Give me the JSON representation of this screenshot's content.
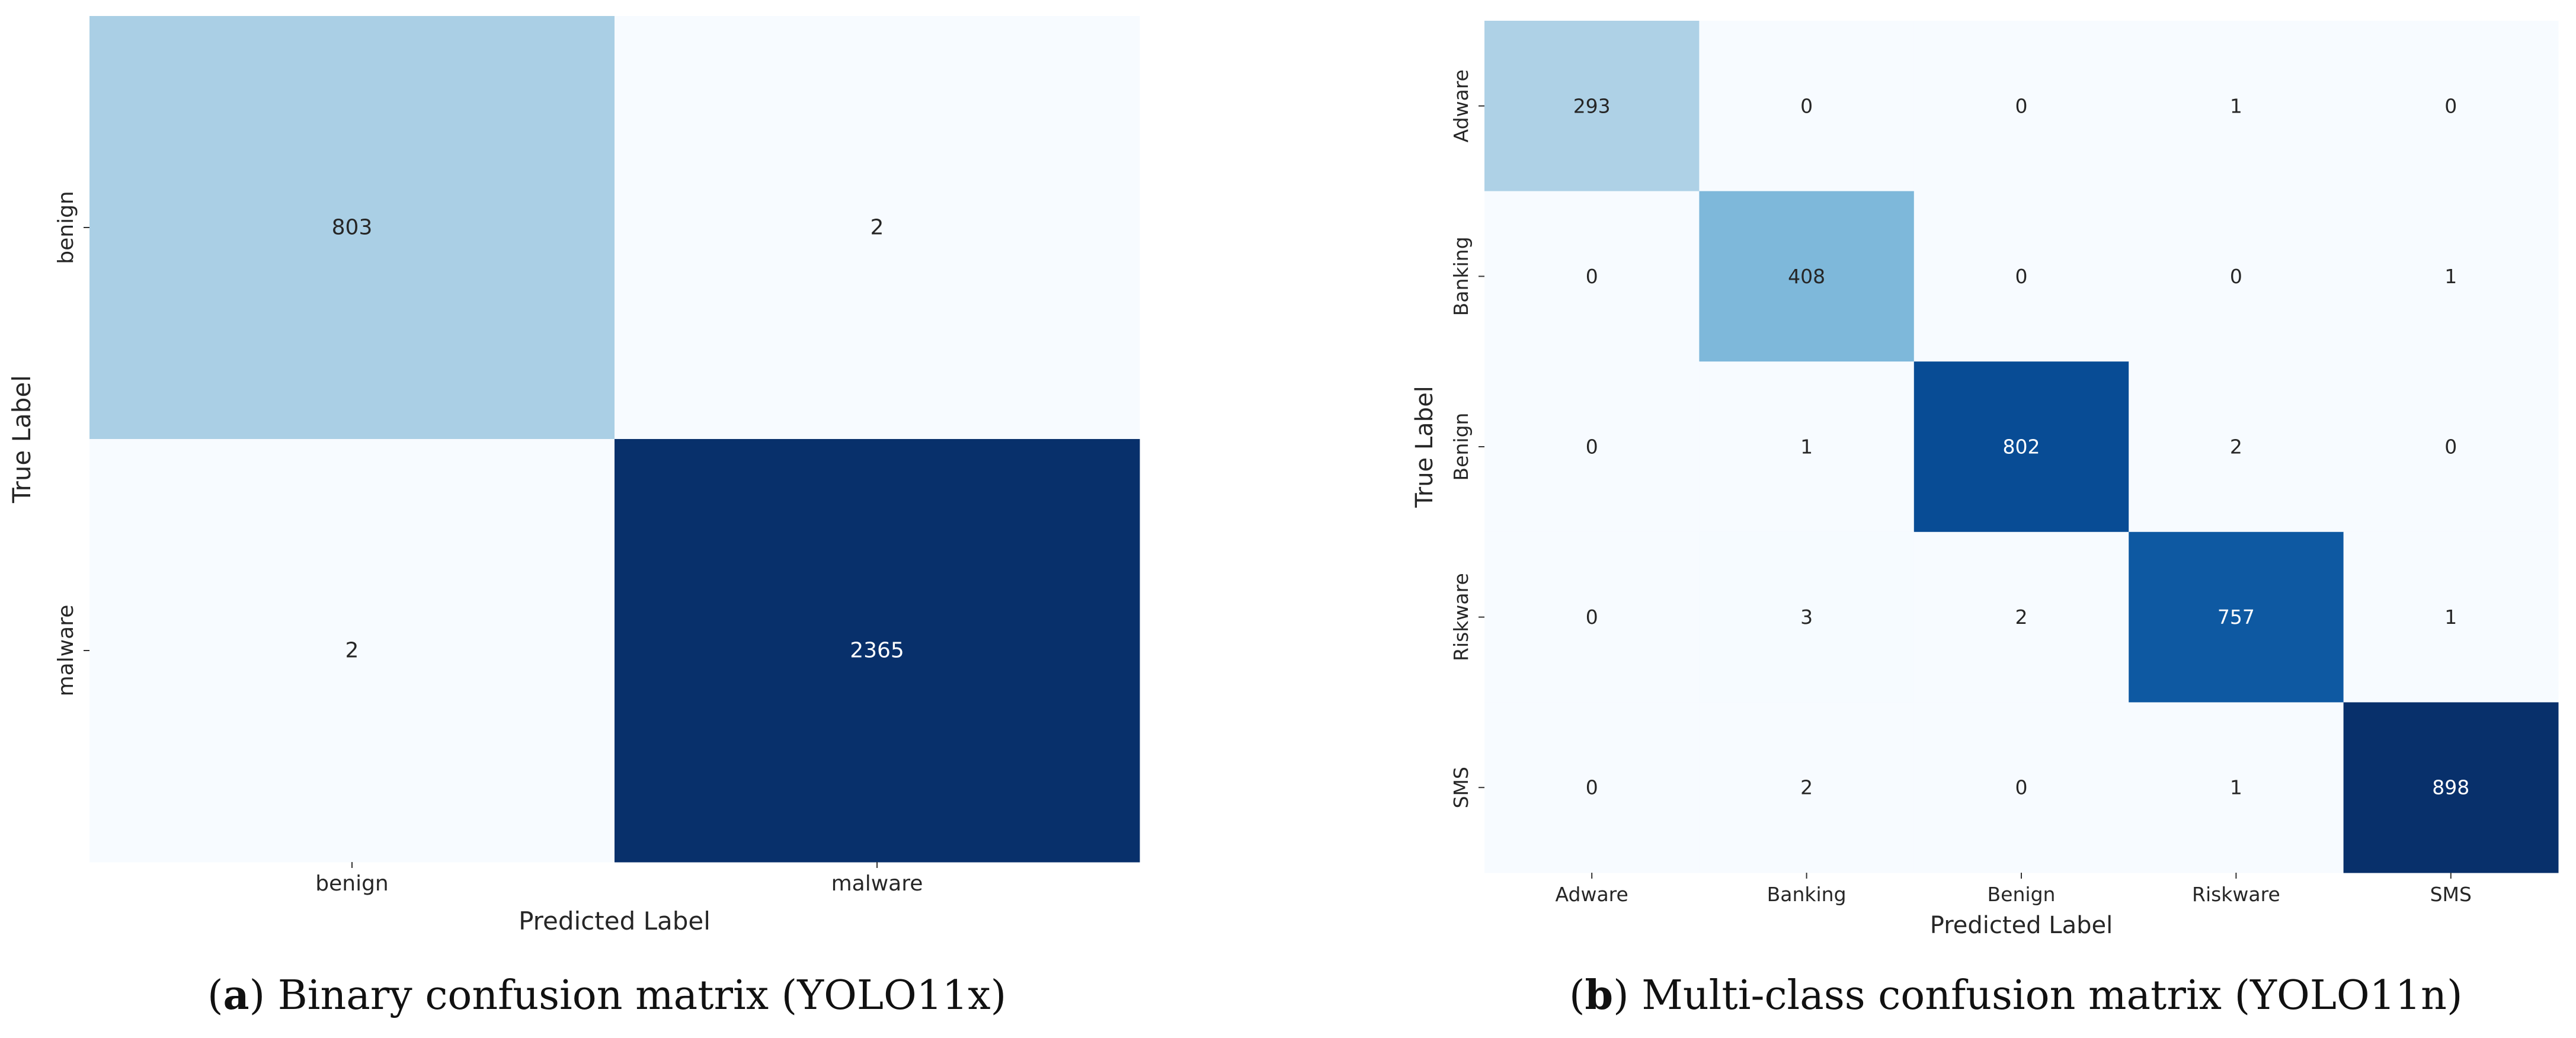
{
  "chart_data": [
    {
      "type": "heatmap",
      "title": "Binary confusion matrix (YOLO11x)",
      "xlabel": "Predicted Label",
      "ylabel": "True Label",
      "x_categories": [
        "benign",
        "malware"
      ],
      "y_categories": [
        "benign",
        "malware"
      ],
      "values": [
        [
          803,
          2
        ],
        [
          2,
          2365
        ]
      ],
      "colormap": "Blues",
      "colorbar": false
    },
    {
      "type": "heatmap",
      "title": "Multi-class confusion matrix (YOLO11n)",
      "xlabel": "Predicted Label",
      "ylabel": "True Label",
      "x_categories": [
        "Adware",
        "Banking",
        "Benign",
        "Riskware",
        "SMS"
      ],
      "y_categories": [
        "Adware",
        "Banking",
        "Benign",
        "Riskware",
        "SMS"
      ],
      "values": [
        [
          293,
          0,
          0,
          1,
          0
        ],
        [
          0,
          408,
          0,
          0,
          1
        ],
        [
          0,
          1,
          802,
          2,
          0
        ],
        [
          0,
          3,
          2,
          757,
          1
        ],
        [
          0,
          2,
          0,
          1,
          898
        ]
      ],
      "colormap": "Blues",
      "colorbar": false
    }
  ],
  "captions": {
    "a": {
      "tag": "a",
      "text": " Binary confusion matrix (YOLO11x)"
    },
    "b": {
      "tag": "b",
      "text": " Multi-class confusion matrix (YOLO11n)"
    }
  }
}
